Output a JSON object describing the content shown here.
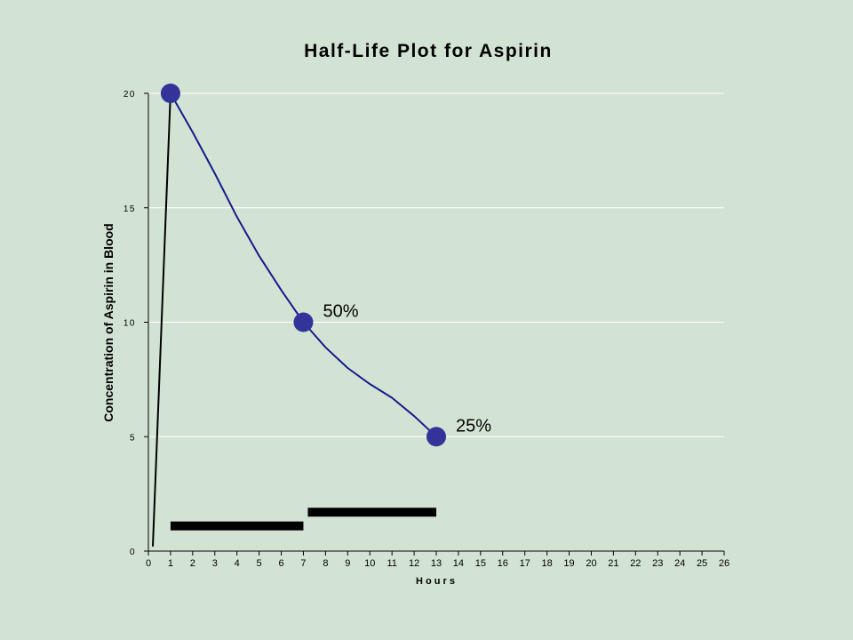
{
  "chart_data": {
    "type": "line",
    "title": "Half-Life Plot for Aspirin",
    "xlabel": "H o u r s",
    "ylabel": "Concentration of Aspirin in Blood",
    "xlim": [
      0,
      26
    ],
    "ylim": [
      0,
      20
    ],
    "x_ticks": [
      "0",
      "1",
      "2",
      "3",
      "4",
      "5",
      "6",
      "7",
      "8",
      "9",
      "10",
      "11",
      "12",
      "13",
      "14",
      "15",
      "16",
      "17",
      "18",
      "19",
      "20",
      "21",
      "22",
      "23",
      "24",
      "25",
      "26"
    ],
    "y_ticks": [
      "0",
      "5",
      "10",
      "15",
      "20"
    ],
    "grid": "horizontal",
    "series": [
      {
        "color": "#000000",
        "x": [
          0.2,
          1
        ],
        "y": [
          0.2,
          20
        ]
      },
      {
        "color": "#1a1a8c",
        "x": [
          1,
          2,
          3,
          4,
          5,
          6,
          7,
          8,
          9,
          10,
          11,
          12,
          13
        ],
        "y": [
          20,
          18.3,
          16.5,
          14.6,
          12.9,
          11.4,
          10.0,
          8.9,
          8.0,
          7.3,
          6.7,
          5.9,
          5.0
        ]
      }
    ],
    "markers": [
      {
        "x": 1,
        "y": 20,
        "color": "#333399"
      },
      {
        "x": 7,
        "y": 10,
        "color": "#333399",
        "label": "50%"
      },
      {
        "x": 13,
        "y": 5,
        "color": "#333399",
        "label": "25%"
      }
    ],
    "interval_bars": [
      {
        "x_start": 1,
        "x_end": 7,
        "y": 1.1
      },
      {
        "x_start": 7.2,
        "x_end": 13,
        "y": 1.7
      }
    ]
  }
}
